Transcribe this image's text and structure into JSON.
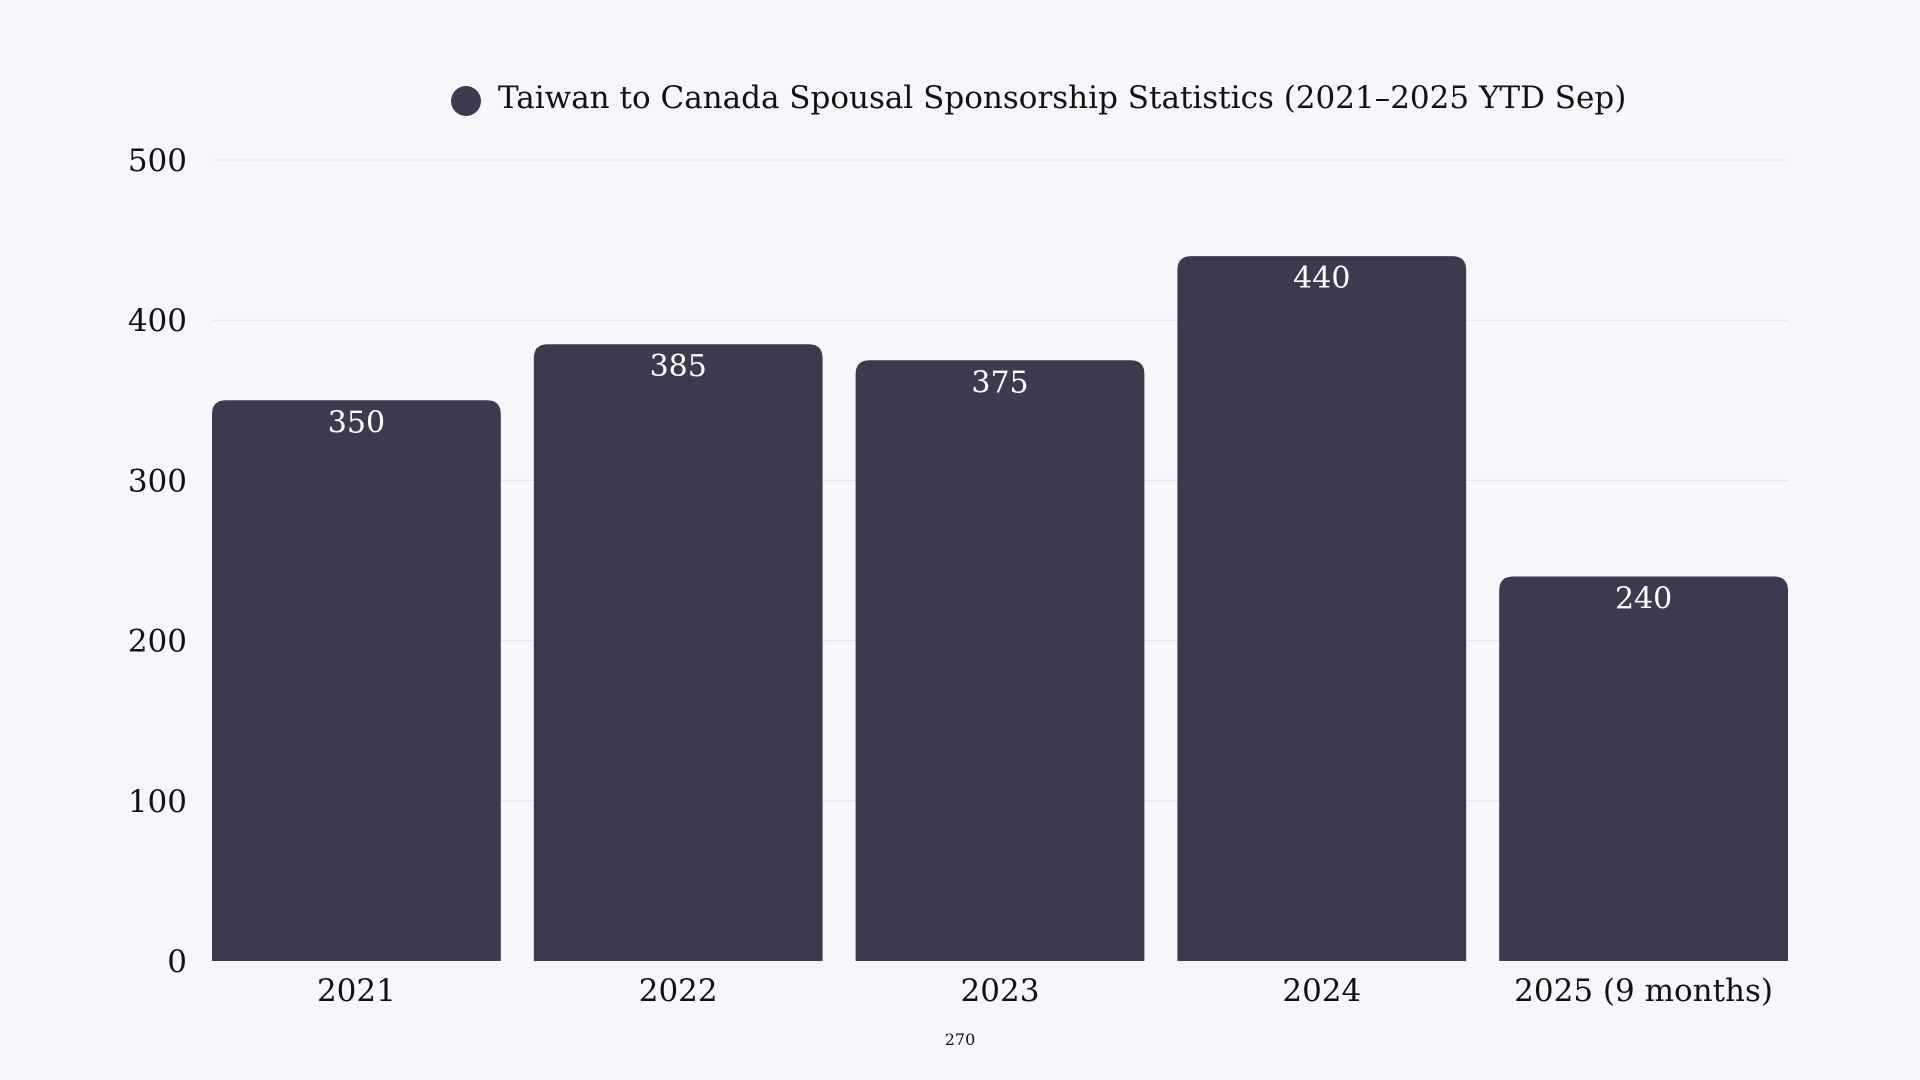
{
  "chart_data": {
    "type": "bar",
    "legend_label": "Taiwan to Canada Spousal Sponsorship Statistics (2021–2025 YTD Sep)",
    "legend_placement": "top-center",
    "categories": [
      "2021",
      "2022",
      "2023",
      "2024",
      "2025 (9 months)"
    ],
    "values": [
      350,
      385,
      375,
      440,
      240
    ],
    "data_labels": [
      "350",
      "385",
      "375",
      "440",
      "240"
    ],
    "ylim": [
      0,
      500
    ],
    "yticks": [
      0,
      100,
      200,
      300,
      400,
      500
    ],
    "ytick_labels": [
      "0",
      "100",
      "200",
      "300",
      "400",
      "500"
    ],
    "grid": true,
    "footnote": "270",
    "colors": {
      "bar": "#3d3a50",
      "background": "#f5f7fa",
      "grid": "#e1e3e8"
    }
  }
}
